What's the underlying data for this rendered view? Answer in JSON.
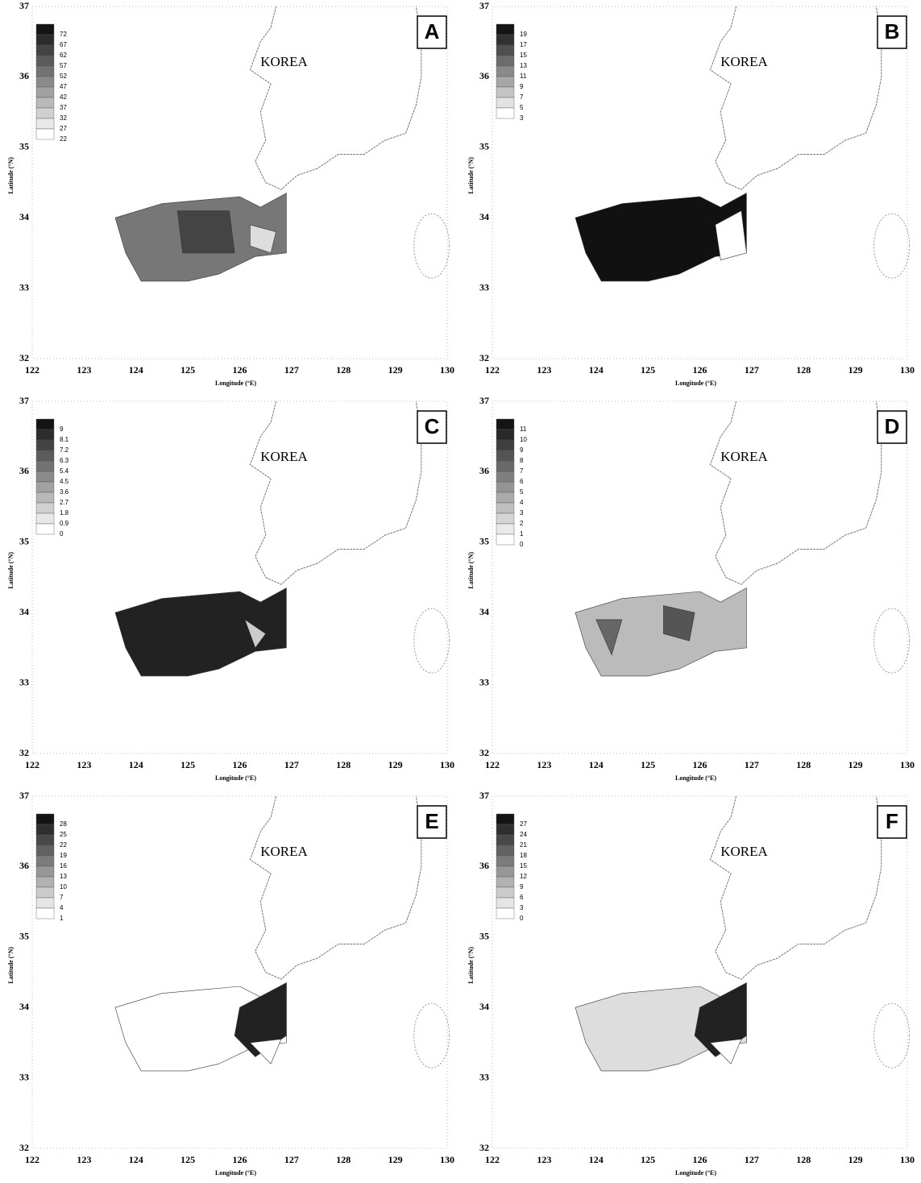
{
  "axes": {
    "xticks": [
      122,
      123,
      124,
      125,
      126,
      127,
      128,
      129,
      130
    ],
    "yticks": [
      32,
      33,
      34,
      35,
      36,
      37
    ],
    "x_label": "Longitude (°E)",
    "y_label": "Latitude (°N)"
  },
  "panels": [
    {
      "letter": "A",
      "region_label": "KOREA",
      "colorbar": [
        72,
        67,
        62,
        57,
        52,
        47,
        42,
        37,
        32,
        27,
        22
      ]
    },
    {
      "letter": "B",
      "region_label": "KOREA",
      "colorbar": [
        19,
        17,
        15,
        13,
        11,
        9,
        7,
        5,
        3
      ]
    },
    {
      "letter": "C",
      "region_label": "KOREA",
      "colorbar": [
        9,
        8.1,
        7.2,
        6.3,
        5.4,
        4.5,
        3.6,
        2.7,
        1.8,
        0.9,
        0
      ]
    },
    {
      "letter": "D",
      "region_label": "KOREA",
      "colorbar": [
        11,
        10,
        9,
        8,
        7,
        6,
        5,
        4,
        3,
        2,
        1,
        0
      ]
    },
    {
      "letter": "E",
      "region_label": "KOREA",
      "colorbar": [
        28,
        25,
        22,
        19,
        16,
        13,
        10,
        7,
        4,
        1
      ]
    },
    {
      "letter": "F",
      "region_label": "KOREA",
      "colorbar": [
        27,
        24,
        21,
        18,
        15,
        12,
        9,
        6,
        3,
        0
      ]
    }
  ]
}
